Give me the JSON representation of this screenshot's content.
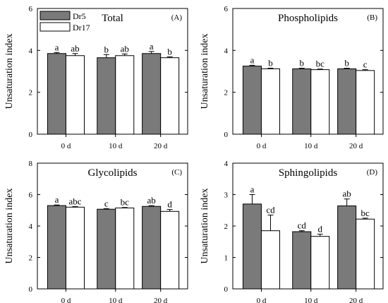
{
  "chart_data": [
    {
      "type": "bar",
      "title": "Total",
      "panel_label": "(A)",
      "ylabel": "Unsaturation index",
      "xlabel": "",
      "ylim": [
        0,
        6
      ],
      "yticks": [
        "0",
        "2",
        "4",
        "6"
      ],
      "categories": [
        "0 d",
        "10 d",
        "20 d"
      ],
      "legend": {
        "entries": [
          "Dr5",
          "Dr17"
        ],
        "placement": "top-left"
      },
      "series": [
        {
          "name": "Dr5",
          "color": "#7a7a7a",
          "values": [
            3.85,
            3.65,
            3.85
          ],
          "errors": [
            0.05,
            0.15,
            0.1
          ],
          "letters": [
            "a",
            "b",
            "a"
          ]
        },
        {
          "name": "Dr17",
          "color": "#ffffff",
          "values": [
            3.75,
            3.75,
            3.65
          ],
          "errors": [
            0.1,
            0.08,
            0.04
          ],
          "letters": [
            "ab",
            "ab",
            "b"
          ]
        }
      ]
    },
    {
      "type": "bar",
      "title": "Phospholipids",
      "panel_label": "(B)",
      "ylabel": "Unsaturation index",
      "xlabel": "",
      "ylim": [
        0,
        6
      ],
      "yticks": [
        "0",
        "2",
        "4",
        "6"
      ],
      "categories": [
        "0 d",
        "10 d",
        "20 d"
      ],
      "series": [
        {
          "name": "Dr5",
          "color": "#7a7a7a",
          "values": [
            3.25,
            3.12,
            3.12
          ],
          "errors": [
            0.04,
            0.03,
            0.03
          ],
          "letters": [
            "a",
            "b",
            "b"
          ]
        },
        {
          "name": "Dr17",
          "color": "#ffffff",
          "values": [
            3.12,
            3.08,
            3.04
          ],
          "errors": [
            0.03,
            0.03,
            0.04
          ],
          "letters": [
            "b",
            "bc",
            "c"
          ]
        }
      ]
    },
    {
      "type": "bar",
      "title": "Glycolipids",
      "panel_label": "(C)",
      "ylabel": "Unsaturation index",
      "xlabel": "",
      "ylim": [
        0,
        8
      ],
      "yticks": [
        "0",
        "2",
        "4",
        "6",
        "8"
      ],
      "categories": [
        "0 d",
        "10 d",
        "20 d"
      ],
      "series": [
        {
          "name": "Dr5",
          "color": "#7a7a7a",
          "values": [
            5.3,
            5.07,
            5.25
          ],
          "errors": [
            0.04,
            0.04,
            0.05
          ],
          "letters": [
            "a",
            "c",
            "ab"
          ]
        },
        {
          "name": "Dr17",
          "color": "#ffffff",
          "values": [
            5.2,
            5.15,
            4.93
          ],
          "errors": [
            0.04,
            0.03,
            0.12
          ],
          "letters": [
            "abc",
            "bc",
            "d"
          ]
        }
      ]
    },
    {
      "type": "bar",
      "title": "Sphingolipids",
      "panel_label": "(D)",
      "ylabel": "Unsaturation index",
      "xlabel": "",
      "ylim": [
        0,
        4
      ],
      "yticks": [
        "0",
        "1",
        "2",
        "3",
        "4"
      ],
      "categories": [
        "0 d",
        "10 d",
        "20 d"
      ],
      "series": [
        {
          "name": "Dr5",
          "color": "#7a7a7a",
          "values": [
            2.7,
            1.82,
            2.64
          ],
          "errors": [
            0.3,
            0.03,
            0.22
          ],
          "letters": [
            "a",
            "cd",
            "ab"
          ]
        },
        {
          "name": "Dr17",
          "color": "#ffffff",
          "values": [
            1.85,
            1.67,
            2.22
          ],
          "errors": [
            0.5,
            0.07,
            0.03
          ],
          "letters": [
            "cd",
            "d",
            "bc"
          ]
        }
      ]
    }
  ]
}
